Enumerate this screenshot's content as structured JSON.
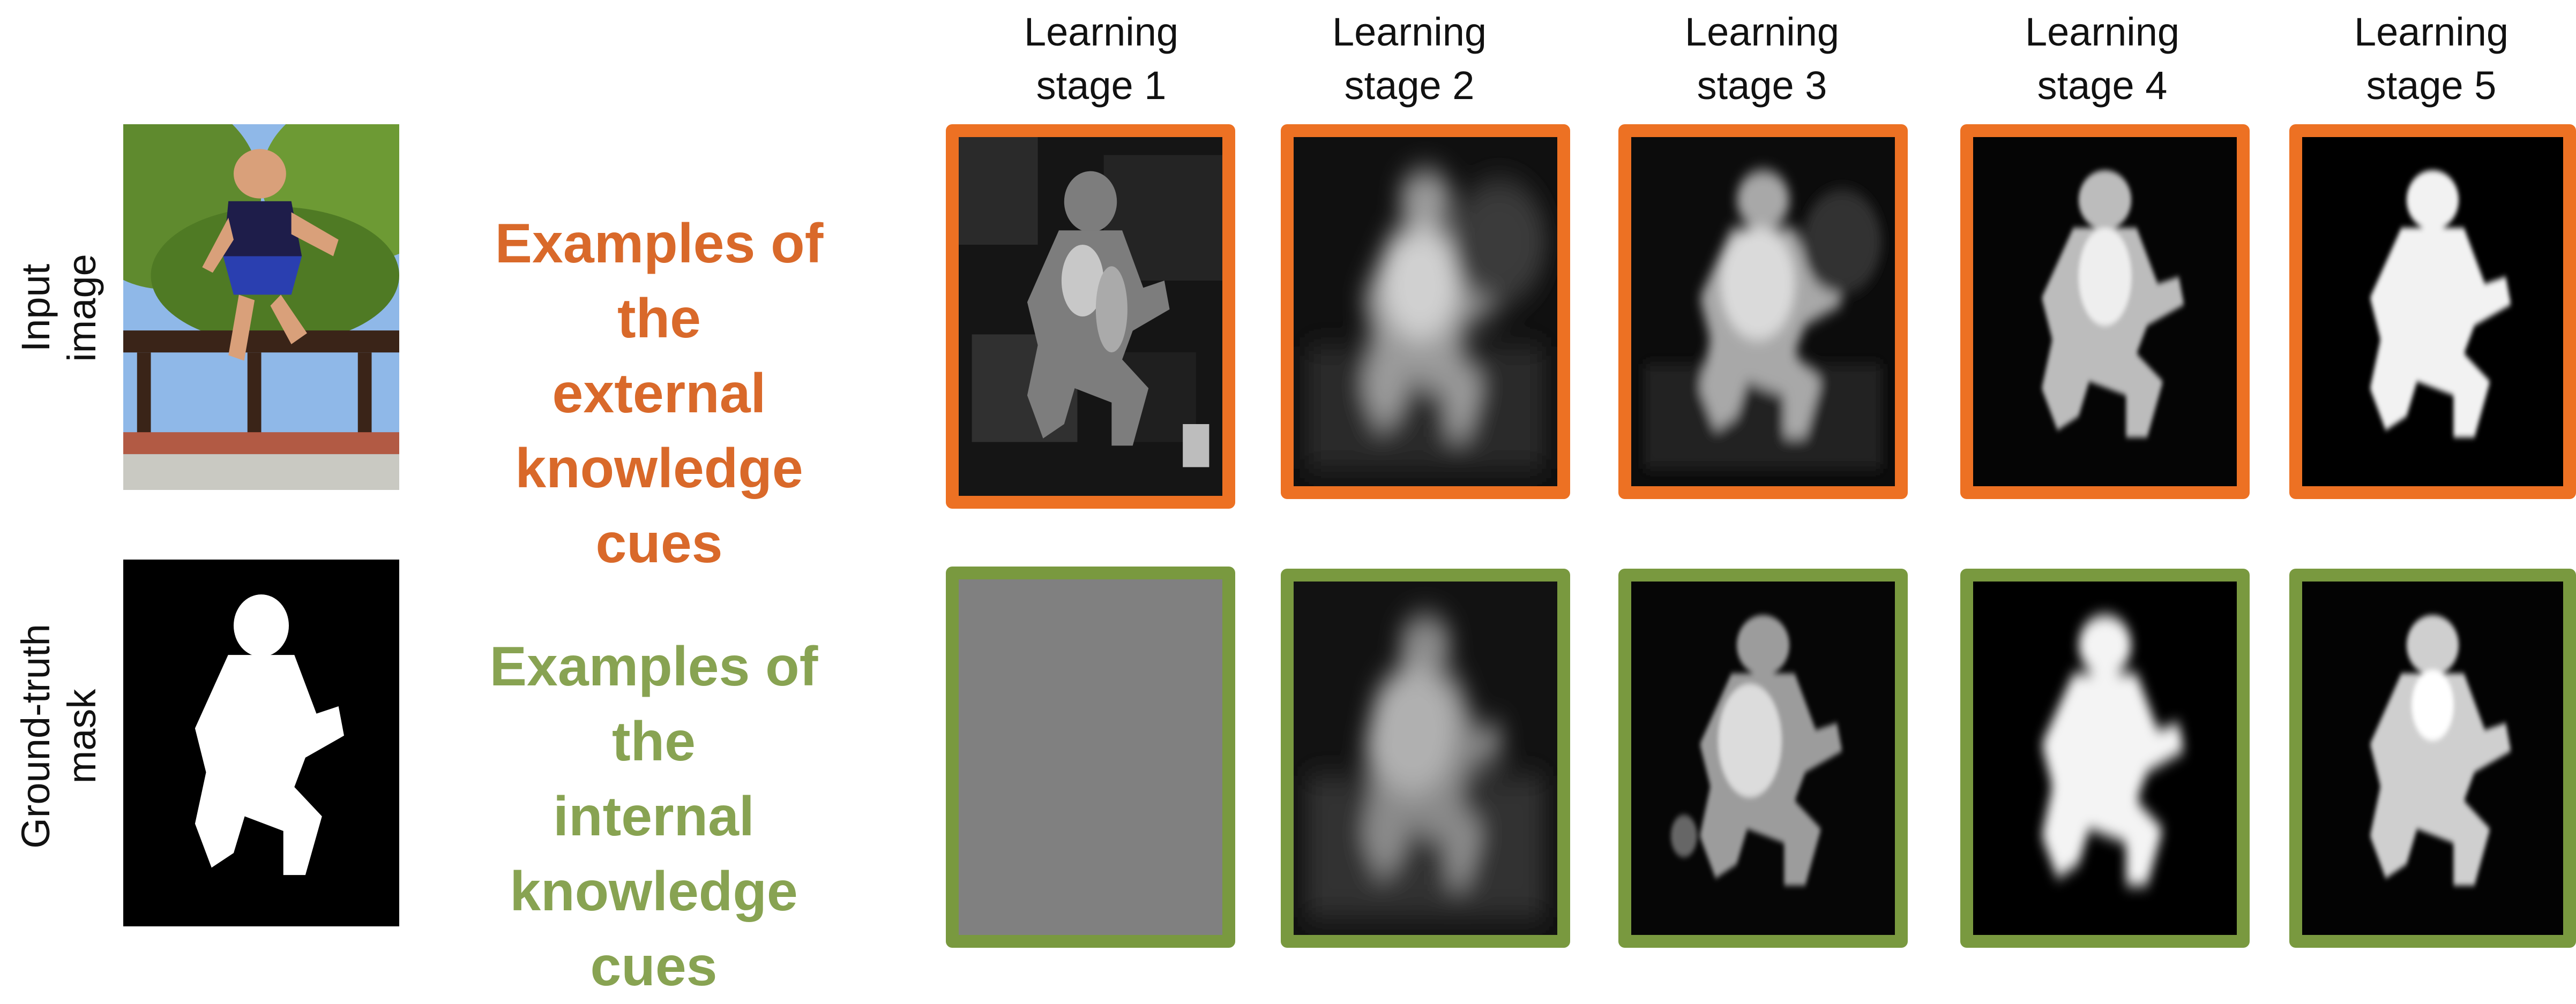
{
  "stages": [
    {
      "line1": "Learning",
      "line2": "stage 1"
    },
    {
      "line1": "Learning",
      "line2": "stage 2"
    },
    {
      "line1": "Learning",
      "line2": "stage 3"
    },
    {
      "line1": "Learning",
      "line2": "stage 4"
    },
    {
      "line1": "Learning",
      "line2": "stage 5"
    }
  ],
  "rows": {
    "input": {
      "label_line1": "Input",
      "label_line2": "image"
    },
    "gt": {
      "label_line1": "Ground-truth",
      "label_line2": "mask"
    }
  },
  "cues": {
    "external": {
      "line1": "Examples of the",
      "line2": "external",
      "line3": "knowledge cues"
    },
    "internal": {
      "line1": "Examples of the",
      "line2": "internal",
      "line3": "knowledge cues"
    }
  },
  "colors": {
    "external": "#ED7123",
    "internal": "#79993F",
    "external_text": "#D9692A",
    "internal_text": "#88A352"
  }
}
